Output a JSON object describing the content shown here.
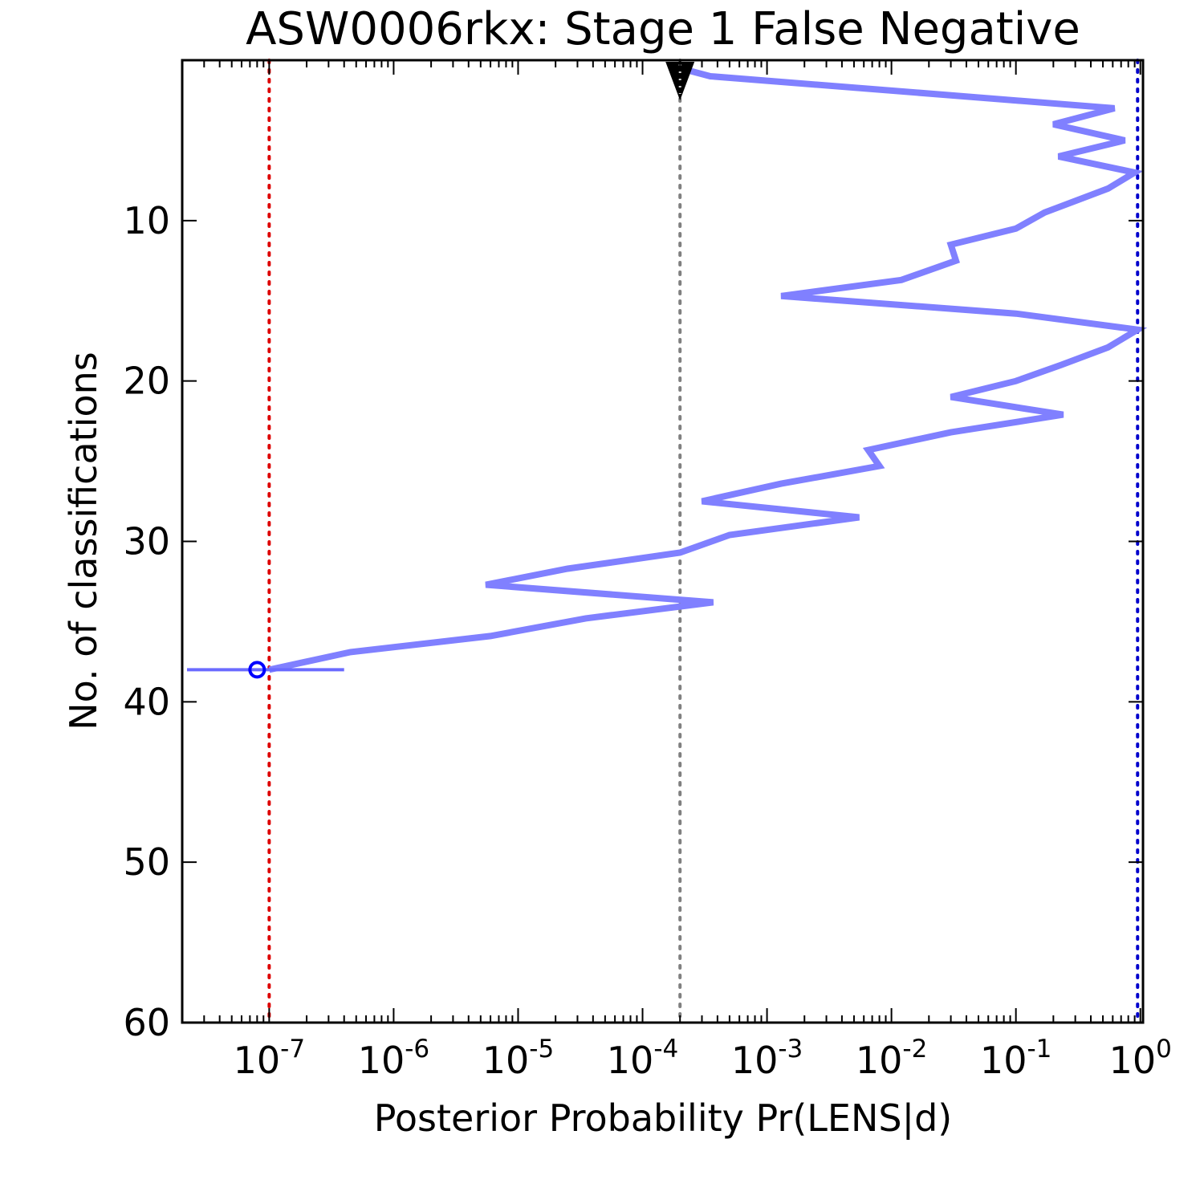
{
  "chart_data": {
    "type": "line",
    "title": "ASW0006rkx: Stage 1 False Negative",
    "xlabel": "Posterior Probability Pr(LENS|d)",
    "ylabel": "No. of classifications",
    "xscale": "log",
    "xlim": [
      2e-08,
      1.05
    ],
    "ylim": [
      60,
      0
    ],
    "x_ticks": [
      {
        "base": "10",
        "exp": "-7",
        "value": 1e-07
      },
      {
        "base": "10",
        "exp": "-6",
        "value": 1e-06
      },
      {
        "base": "10",
        "exp": "-5",
        "value": 1e-05
      },
      {
        "base": "10",
        "exp": "-4",
        "value": 0.0001
      },
      {
        "base": "10",
        "exp": "-3",
        "value": 0.001
      },
      {
        "base": "10",
        "exp": "-2",
        "value": 0.01
      },
      {
        "base": "10",
        "exp": "-1",
        "value": 0.1
      },
      {
        "base": "10",
        "exp": "0",
        "value": 1
      }
    ],
    "y_ticks": [
      "10",
      "20",
      "30",
      "40",
      "50",
      "60"
    ],
    "y_tick_values": [
      10,
      20,
      30,
      40,
      50,
      60
    ],
    "grid": false,
    "reference_lines": [
      {
        "x": 1e-07,
        "color": "#dd0000",
        "style": "dotted"
      },
      {
        "x": 0.0002,
        "color": "#808080",
        "style": "dotted"
      },
      {
        "x": 0.95,
        "color": "#0000cc",
        "style": "dotted"
      }
    ],
    "series": [
      {
        "color": "#8080ff",
        "x": [
          0.0002,
          0.00035,
          0.62,
          0.2,
          0.75,
          0.22,
          0.9,
          0.55,
          0.17,
          0.1,
          0.03,
          0.033,
          0.012,
          0.0013,
          0.1,
          0.95,
          0.55,
          0.23,
          0.1,
          0.03,
          0.24,
          0.03,
          0.0065,
          0.008,
          0.0013,
          0.0003,
          0.0055,
          0.0005,
          0.0002,
          2.5e-05,
          5.5e-06,
          0.00037,
          3.5e-05,
          6e-06,
          4.5e-07,
          1e-07
        ],
        "y": [
          0.5,
          1,
          3,
          4,
          5,
          6,
          7,
          8,
          9.5,
          10.5,
          11.5,
          12.5,
          13.7,
          14.7,
          15.8,
          16.8,
          17.9,
          19,
          20,
          21,
          22.1,
          23.2,
          24.3,
          25.3,
          26.4,
          27.5,
          28.5,
          29.6,
          30.7,
          31.7,
          32.7,
          33.8,
          34.8,
          35.9,
          36.9,
          38
        ]
      }
    ],
    "final_point": {
      "x": 8e-08,
      "y": 38,
      "xerr": [
        2e-08,
        4e-07
      ],
      "color": "#0000ff"
    },
    "start_marker": {
      "x": 0.0002,
      "y": 0,
      "shape": "triangle-down",
      "color": "#000000"
    }
  }
}
